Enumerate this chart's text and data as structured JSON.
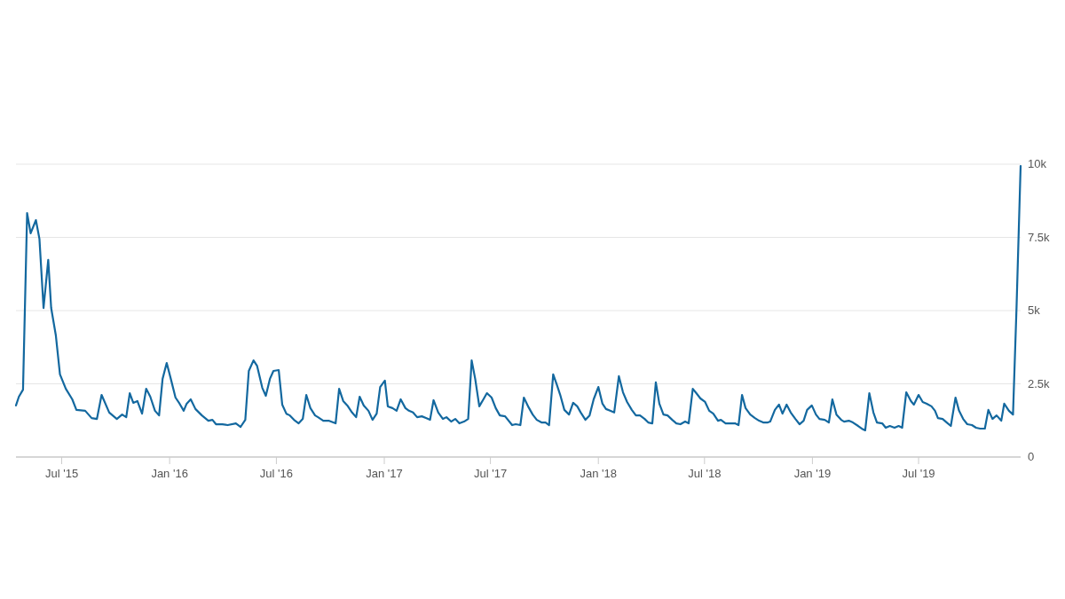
{
  "chart_data": {
    "type": "line",
    "xlim": [
      "2015-04-14",
      "2019-12-22"
    ],
    "xticks": [
      {
        "value": "2015-07-01",
        "label": "Jul '15"
      },
      {
        "value": "2016-01-01",
        "label": "Jan '16"
      },
      {
        "value": "2016-07-01",
        "label": "Jul '16"
      },
      {
        "value": "2017-01-01",
        "label": "Jan '17"
      },
      {
        "value": "2017-07-01",
        "label": "Jul '17"
      },
      {
        "value": "2018-01-01",
        "label": "Jan '18"
      },
      {
        "value": "2018-07-01",
        "label": "Jul '18"
      },
      {
        "value": "2019-01-01",
        "label": "Jan '19"
      },
      {
        "value": "2019-07-01",
        "label": "Jul '19"
      }
    ],
    "ylim": [
      0,
      10000
    ],
    "yticks": [
      0,
      {
        "value": 2500,
        "label": "2.5k"
      },
      {
        "value": 5000,
        "label": "5k"
      },
      {
        "value": 7500,
        "label": "7.5k"
      },
      {
        "value": 10000,
        "label": "10k"
      }
    ],
    "grid": "y",
    "marker": "none",
    "line_style": "solid",
    "series": [
      {
        "color": "#13689f",
        "x": [
          "2015-04-14",
          "2015-04-19",
          "2015-04-26",
          "2015-05-03",
          "2015-05-09",
          "2015-05-18",
          "2015-05-24",
          "2015-05-31",
          "2015-06-08",
          "2015-06-13",
          "2015-06-21",
          "2015-06-28",
          "2015-07-08",
          "2015-07-19",
          "2015-07-26",
          "2015-08-10",
          "2015-08-21",
          "2015-08-30",
          "2015-09-07",
          "2015-09-20",
          "2015-10-03",
          "2015-10-12",
          "2015-10-19",
          "2015-10-25",
          "2015-10-31",
          "2015-11-07",
          "2015-11-15",
          "2015-11-22",
          "2015-11-29",
          "2015-12-07",
          "2015-12-14",
          "2015-12-20",
          "2015-12-27",
          "2016-01-03",
          "2016-01-11",
          "2016-01-18",
          "2016-01-25",
          "2016-01-30",
          "2016-02-06",
          "2016-02-14",
          "2016-02-25",
          "2016-03-07",
          "2016-03-14",
          "2016-03-20",
          "2016-03-31",
          "2016-04-09",
          "2016-04-23",
          "2016-05-01",
          "2016-05-09",
          "2016-05-15",
          "2016-05-23",
          "2016-05-29",
          "2016-06-07",
          "2016-06-13",
          "2016-06-20",
          "2016-06-26",
          "2016-07-05",
          "2016-07-11",
          "2016-07-18",
          "2016-07-24",
          "2016-07-31",
          "2016-08-08",
          "2016-08-15",
          "2016-08-21",
          "2016-08-28",
          "2016-09-05",
          "2016-09-10",
          "2016-09-19",
          "2016-09-28",
          "2016-10-10",
          "2016-10-16",
          "2016-10-23",
          "2016-10-30",
          "2016-11-07",
          "2016-11-14",
          "2016-11-20",
          "2016-11-27",
          "2016-12-05",
          "2016-12-12",
          "2016-12-19",
          "2016-12-25",
          "2017-01-02",
          "2017-01-07",
          "2017-01-15",
          "2017-01-22",
          "2017-01-29",
          "2017-02-06",
          "2017-02-12",
          "2017-02-19",
          "2017-02-26",
          "2017-03-06",
          "2017-03-13",
          "2017-03-20",
          "2017-03-26",
          "2017-04-03",
          "2017-04-11",
          "2017-04-17",
          "2017-04-25",
          "2017-05-02",
          "2017-05-09",
          "2017-05-17",
          "2017-05-24",
          "2017-05-30",
          "2017-06-05",
          "2017-06-12",
          "2017-06-19",
          "2017-06-25",
          "2017-07-03",
          "2017-07-10",
          "2017-07-17",
          "2017-07-26",
          "2017-08-07",
          "2017-08-13",
          "2017-08-21",
          "2017-08-27",
          "2017-09-04",
          "2017-09-11",
          "2017-09-18",
          "2017-09-26",
          "2017-10-03",
          "2017-10-09",
          "2017-10-16",
          "2017-10-22",
          "2017-10-28",
          "2017-11-04",
          "2017-11-12",
          "2017-11-19",
          "2017-11-26",
          "2017-12-02",
          "2017-12-10",
          "2017-12-17",
          "2017-12-24",
          "2018-01-01",
          "2018-01-08",
          "2018-01-14",
          "2018-01-21",
          "2018-01-28",
          "2018-02-05",
          "2018-02-12",
          "2018-02-19",
          "2018-02-27",
          "2018-03-06",
          "2018-03-13",
          "2018-03-21",
          "2018-03-27",
          "2018-04-03",
          "2018-04-09",
          "2018-04-15",
          "2018-04-22",
          "2018-04-29",
          "2018-05-07",
          "2018-05-14",
          "2018-05-21",
          "2018-05-29",
          "2018-06-04",
          "2018-06-11",
          "2018-06-17",
          "2018-06-24",
          "2018-07-02",
          "2018-07-09",
          "2018-07-16",
          "2018-07-24",
          "2018-07-29",
          "2018-08-06",
          "2018-08-15",
          "2018-08-22",
          "2018-08-28",
          "2018-09-03",
          "2018-09-09",
          "2018-09-17",
          "2018-09-25",
          "2018-10-02",
          "2018-10-09",
          "2018-10-17",
          "2018-10-21",
          "2018-10-29",
          "2018-11-05",
          "2018-11-11",
          "2018-11-18",
          "2018-11-25",
          "2018-12-03",
          "2018-12-10",
          "2018-12-17",
          "2018-12-23",
          "2018-12-31",
          "2019-01-07",
          "2019-01-13",
          "2019-01-22",
          "2019-01-29",
          "2019-02-04",
          "2019-02-11",
          "2019-02-19",
          "2019-02-24",
          "2019-03-04",
          "2019-03-11",
          "2019-03-20",
          "2019-03-26",
          "2019-04-01",
          "2019-04-08",
          "2019-04-15",
          "2019-04-21",
          "2019-04-30",
          "2019-05-06",
          "2019-05-13",
          "2019-05-21",
          "2019-05-28",
          "2019-06-03",
          "2019-06-10",
          "2019-06-18",
          "2019-06-23",
          "2019-07-01",
          "2019-07-08",
          "2019-07-15",
          "2019-07-23",
          "2019-07-29",
          "2019-08-03",
          "2019-08-11",
          "2019-08-18",
          "2019-08-25",
          "2019-09-02",
          "2019-09-08",
          "2019-09-15",
          "2019-09-22",
          "2019-09-30",
          "2019-10-07",
          "2019-10-14",
          "2019-10-22",
          "2019-10-28",
          "2019-11-04",
          "2019-11-11",
          "2019-11-19",
          "2019-11-24",
          "2019-12-02",
          "2019-12-09",
          "2019-12-15",
          "2019-12-22"
        ],
        "values": [
          1760,
          2060,
          2300,
          8330,
          7640,
          8090,
          7450,
          5090,
          6730,
          5090,
          4150,
          2820,
          2330,
          1970,
          1610,
          1580,
          1330,
          1300,
          2120,
          1520,
          1300,
          1450,
          1360,
          2180,
          1850,
          1910,
          1480,
          2330,
          2060,
          1580,
          1420,
          2670,
          3210,
          2670,
          2030,
          1820,
          1580,
          1820,
          1970,
          1640,
          1420,
          1240,
          1270,
          1120,
          1120,
          1090,
          1150,
          1030,
          1270,
          2940,
          3300,
          3120,
          2360,
          2090,
          2670,
          2940,
          2970,
          1790,
          1480,
          1420,
          1270,
          1150,
          1300,
          2120,
          1670,
          1420,
          1360,
          1240,
          1240,
          1150,
          2330,
          1910,
          1760,
          1520,
          1360,
          2060,
          1760,
          1580,
          1270,
          1480,
          2390,
          2610,
          1730,
          1670,
          1580,
          1970,
          1670,
          1580,
          1520,
          1360,
          1390,
          1330,
          1270,
          1940,
          1520,
          1300,
          1360,
          1210,
          1300,
          1150,
          1210,
          1300,
          3300,
          2670,
          1730,
          1970,
          2180,
          2030,
          1670,
          1420,
          1390,
          1090,
          1120,
          1090,
          2030,
          1700,
          1450,
          1270,
          1180,
          1180,
          1090,
          2820,
          2480,
          2120,
          1610,
          1450,
          1850,
          1730,
          1520,
          1270,
          1420,
          1970,
          2390,
          1820,
          1640,
          1580,
          1520,
          2760,
          2210,
          1880,
          1610,
          1420,
          1420,
          1300,
          1180,
          1150,
          2550,
          1820,
          1450,
          1420,
          1270,
          1150,
          1120,
          1210,
          1150,
          2330,
          2180,
          2000,
          1880,
          1580,
          1480,
          1240,
          1270,
          1150,
          1150,
          1150,
          1090,
          2120,
          1670,
          1450,
          1330,
          1240,
          1180,
          1180,
          1210,
          1610,
          1790,
          1480,
          1790,
          1520,
          1300,
          1120,
          1240,
          1610,
          1760,
          1450,
          1300,
          1270,
          1180,
          1970,
          1450,
          1270,
          1210,
          1240,
          1180,
          1060,
          970,
          910,
          2180,
          1520,
          1180,
          1150,
          1000,
          1060,
          1000,
          1060,
          1000,
          2210,
          1910,
          1790,
          2120,
          1880,
          1820,
          1730,
          1580,
          1330,
          1300,
          1180,
          1060,
          2030,
          1580,
          1300,
          1120,
          1090,
          1000,
          970,
          970,
          1610,
          1300,
          1420,
          1240,
          1820,
          1580,
          1450,
          5090,
          9940
        ]
      }
    ]
  }
}
